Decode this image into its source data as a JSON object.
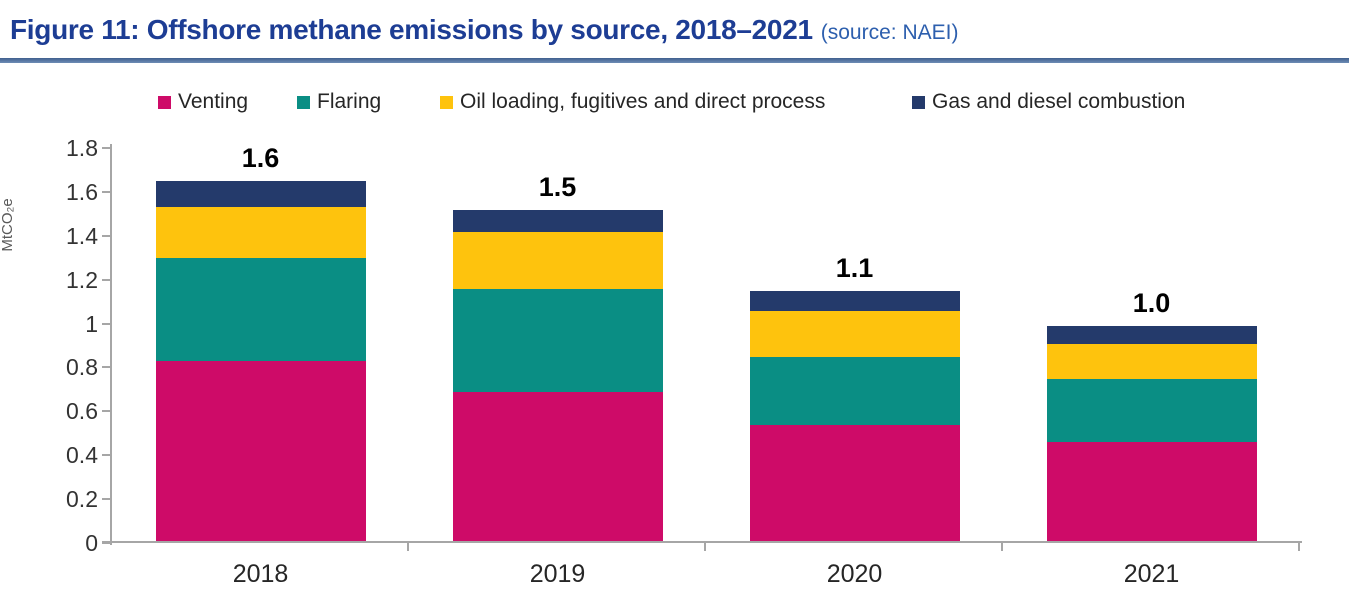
{
  "header": {
    "title": "Figure 11: Offshore methane emissions by source, 2018–2021",
    "source": "(source: NAEI)"
  },
  "colors": {
    "title_blue": "#1d3d94",
    "source_blue": "#2d5fae",
    "rule_blue": "#52719f",
    "axis_gray": "#a6a6a6",
    "tick_label_gray": "#333333",
    "category_label_gray": "#262626",
    "total_label_black": "#000000"
  },
  "chart_data": {
    "type": "bar",
    "stacked": true,
    "categories": [
      "2018",
      "2019",
      "2020",
      "2021"
    ],
    "series": [
      {
        "name": "Venting",
        "color": "#ce0b68",
        "values": [
          0.82,
          0.68,
          0.53,
          0.45
        ]
      },
      {
        "name": "Flaring",
        "color": "#0a8e84",
        "values": [
          0.47,
          0.47,
          0.31,
          0.29
        ]
      },
      {
        "name": "Oil loading, fugitives and direct process",
        "color": "#fec30d",
        "values": [
          0.23,
          0.26,
          0.21,
          0.16
        ]
      },
      {
        "name": "Gas and diesel combustion",
        "color": "#243a6b",
        "values": [
          0.12,
          0.1,
          0.09,
          0.08
        ]
      }
    ],
    "totals_labels": [
      "1.6",
      "1.5",
      "1.1",
      "1.0"
    ],
    "ylabel": "MtCO₂e",
    "ylim": [
      0,
      1.8
    ],
    "ytick_values": [
      0,
      0.2,
      0.4,
      0.6,
      0.8,
      1,
      1.2,
      1.4,
      1.6,
      1.8
    ],
    "ytick_labels": [
      "0",
      "0.2",
      "0.4",
      "0.6",
      "0.8",
      "1",
      "1.2",
      "1.4",
      "1.6",
      "1.8"
    ],
    "legend_position": "top",
    "grid": false
  }
}
